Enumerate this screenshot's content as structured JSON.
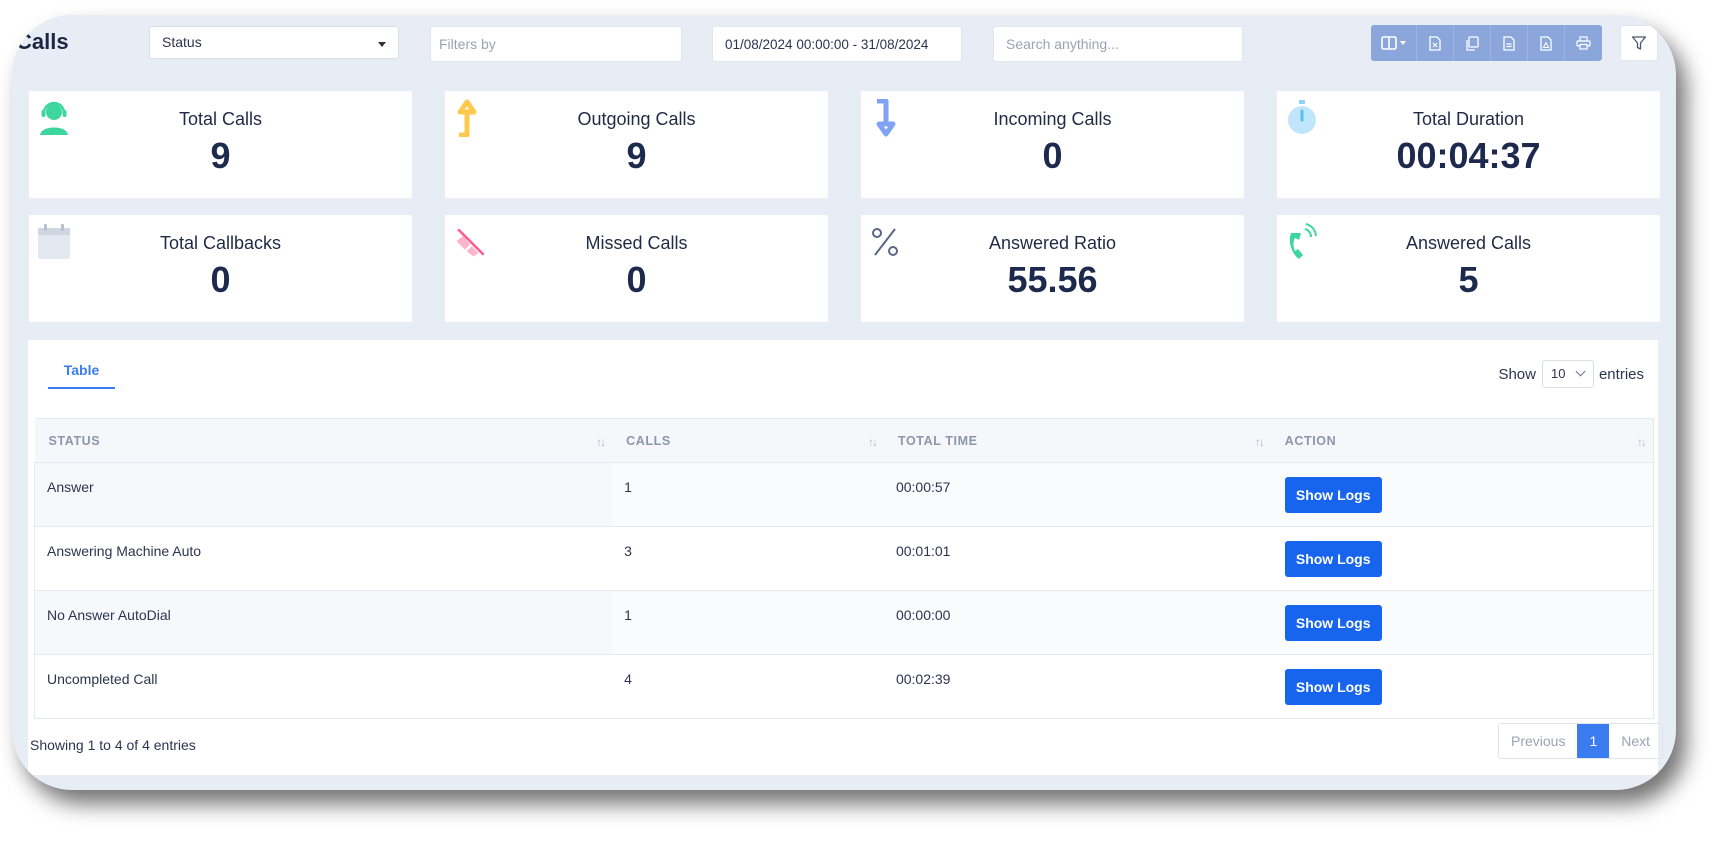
{
  "header": {
    "title": "Calls",
    "status_select": "Status",
    "filters_placeholder": "Filters by",
    "date_range": "01/08/2024 00:00:00 - 31/08/2024",
    "search_placeholder": "Search anything..."
  },
  "toolbar": {
    "icons": [
      "columns-icon",
      "excel-icon",
      "copy-icon",
      "csv-icon",
      "pdf-icon",
      "print-icon"
    ],
    "filter_icon": "filter-icon",
    "color": "#8aa6db"
  },
  "stats": [
    {
      "label": "Total Calls",
      "value": "9",
      "icon": "headset-agent-icon",
      "color": "#3ed6a0"
    },
    {
      "label": "Outgoing Calls",
      "value": "9",
      "icon": "arrow-up-icon",
      "color": "#ffc94d"
    },
    {
      "label": "Incoming Calls",
      "value": "0",
      "icon": "arrow-down-icon",
      "color": "#7fa3f2"
    },
    {
      "label": "Total Duration",
      "value": "00:04:37",
      "icon": "stopwatch-icon",
      "color": "#8fd3f7"
    },
    {
      "label": "Total Callbacks",
      "value": "0",
      "icon": "calendar-icon",
      "color": "#d9dee8"
    },
    {
      "label": "Missed Calls",
      "value": "0",
      "icon": "missed-call-icon",
      "color": "#ff7fa8"
    },
    {
      "label": "Answered Ratio",
      "value": "55.56",
      "icon": "percent-icon",
      "color": "#5a6784"
    },
    {
      "label": "Answered Calls",
      "value": "5",
      "icon": "phone-ringing-icon",
      "color": "#3ed6a0"
    }
  ],
  "panel": {
    "tab": "Table",
    "show_label": "Show",
    "entries_value": "10",
    "entries_label": "entries"
  },
  "table": {
    "columns": [
      "STATUS",
      "CALLS",
      "TOTAL TIME",
      "ACTION"
    ],
    "rows": [
      {
        "status": "Answer",
        "calls": "1",
        "time": "00:00:57",
        "action": "Show Logs"
      },
      {
        "status": "Answering Machine Auto",
        "calls": "3",
        "time": "00:01:01",
        "action": "Show Logs"
      },
      {
        "status": "No Answer AutoDial",
        "calls": "1",
        "time": "00:00:00",
        "action": "Show Logs"
      },
      {
        "status": "Uncompleted Call",
        "calls": "4",
        "time": "00:02:39",
        "action": "Show Logs"
      }
    ]
  },
  "footer": {
    "showing": "Showing 1 to 4 of 4 entries",
    "previous": "Previous",
    "page": "1",
    "next": "Next"
  }
}
